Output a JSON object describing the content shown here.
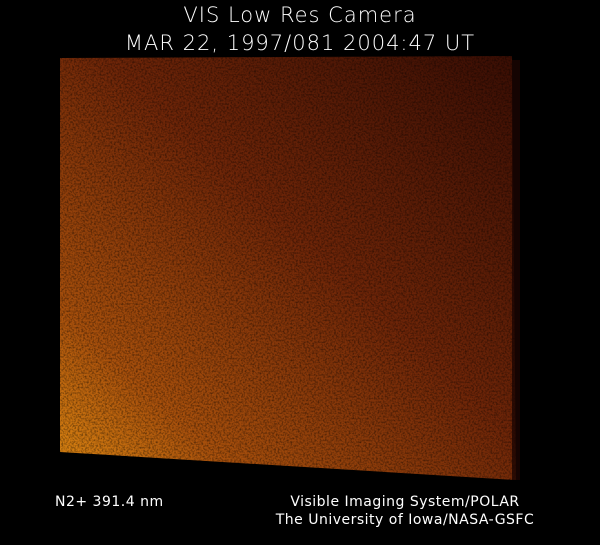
{
  "header": {
    "title": "VIS Low Res Camera",
    "timestamp": "MAR 22, 1997/081 2004:47 UT"
  },
  "image": {
    "colors": {
      "dark": "#3a0e04",
      "mid": "#7a2e0a",
      "bright": "#e08a12"
    }
  },
  "footer": {
    "filter": "N2+ 391.4 nm",
    "instrument": "Visible Imaging System/POLAR",
    "institution": "The University of Iowa/NASA-GSFC"
  }
}
